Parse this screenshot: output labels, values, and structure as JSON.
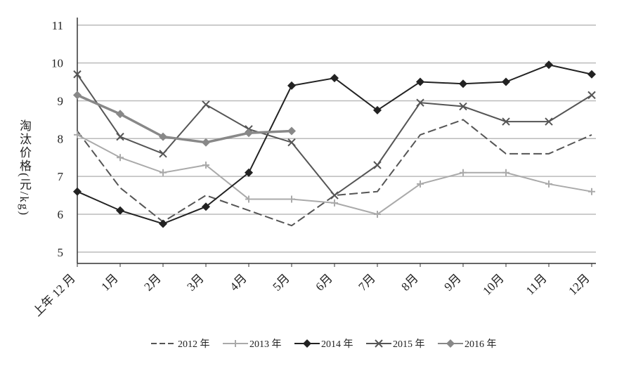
{
  "chart_data": {
    "type": "line",
    "y_label": "淘汰价格(元/kg)",
    "categories": [
      "上年 12 月",
      "1月",
      "2月",
      "3月",
      "4月",
      "5月",
      "6月",
      "7月",
      "8月",
      "9月",
      "10月",
      "11月",
      "12月"
    ],
    "ylim": [
      4.7,
      11.2
    ],
    "yticks": [
      5,
      6,
      7,
      8,
      9,
      10,
      11
    ],
    "grid": true,
    "series": [
      {
        "name": "2012 年",
        "color": "#555555",
        "marker": "none",
        "dash": true,
        "values": [
          8.2,
          6.7,
          5.8,
          6.5,
          6.1,
          5.7,
          6.5,
          6.6,
          8.1,
          8.5,
          7.6,
          7.6,
          8.1
        ]
      },
      {
        "name": "2013 年",
        "color": "#aaaaaa",
        "marker": "plus",
        "dash": false,
        "values": [
          8.1,
          7.5,
          7.1,
          7.3,
          6.4,
          6.4,
          6.3,
          6.0,
          6.8,
          7.1,
          7.1,
          6.8,
          6.6
        ]
      },
      {
        "name": "2014 年",
        "color": "#222222",
        "marker": "diamond",
        "dash": false,
        "values": [
          6.6,
          6.1,
          5.75,
          6.2,
          7.1,
          9.4,
          9.6,
          8.75,
          9.5,
          9.45,
          9.5,
          9.95,
          9.7
        ]
      },
      {
        "name": "2015 年",
        "color": "#555555",
        "marker": "x",
        "dash": false,
        "values": [
          9.7,
          8.05,
          7.6,
          8.9,
          8.25,
          7.9,
          6.5,
          7.3,
          8.95,
          8.85,
          8.45,
          8.45,
          9.15
        ]
      },
      {
        "name": "2016 年",
        "color": "#888888",
        "marker": "diamond",
        "dash": false,
        "values": [
          9.15,
          8.65,
          8.05,
          7.9,
          8.15,
          8.2,
          null,
          null,
          null,
          null,
          null,
          null,
          null
        ]
      }
    ]
  }
}
